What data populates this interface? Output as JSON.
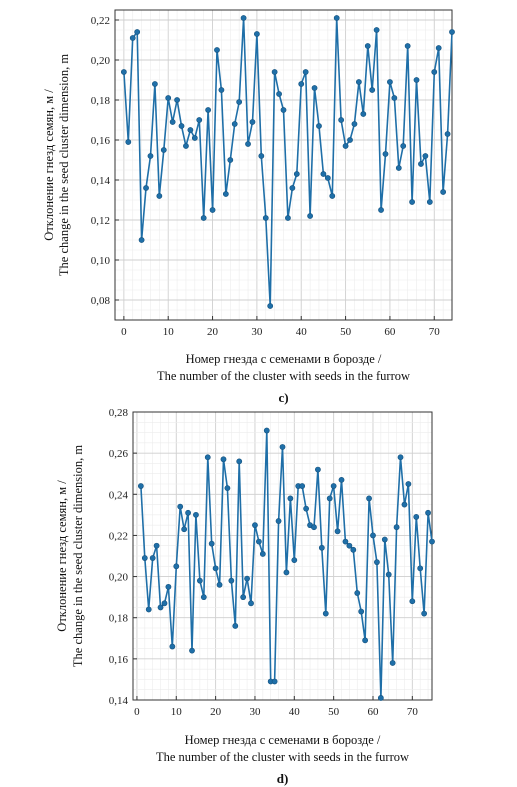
{
  "chart_data": [
    {
      "type": "line",
      "panel_label": "c)",
      "xlabel": [
        "Номер гнезда с семенами в борозде /",
        "The number of the cluster with seeds in the furrow"
      ],
      "ylabel": [
        "Отклонение гнезд семян, м /",
        "The change in the seed cluster dimension, m"
      ],
      "xlim": [
        -2,
        74
      ],
      "ylim": [
        0.07,
        0.225
      ],
      "xticks": [
        0,
        10,
        20,
        30,
        40,
        50,
        60,
        70
      ],
      "yticks": [
        0.08,
        0.1,
        0.12,
        0.14,
        0.16,
        0.18,
        0.2,
        0.22
      ],
      "ytick_labels": [
        "0,08",
        "0,10",
        "0,12",
        "0,14",
        "0,16",
        "0,18",
        "0,20",
        "0,22"
      ],
      "grid": true,
      "color": "#1f6fa8",
      "x": [
        0,
        1,
        2,
        3,
        4,
        5,
        6,
        7,
        8,
        9,
        10,
        11,
        12,
        13,
        14,
        15,
        16,
        17,
        18,
        19,
        20,
        21,
        22,
        23,
        24,
        25,
        26,
        27,
        28,
        29,
        30,
        31,
        32,
        33,
        34,
        35,
        36,
        37,
        38,
        39,
        40,
        41,
        42,
        43,
        44,
        45,
        46,
        47,
        48,
        49,
        50,
        51,
        52,
        53,
        54,
        55,
        56,
        57,
        58,
        59,
        60,
        61,
        62,
        63,
        64,
        65,
        66,
        67,
        68,
        69,
        70,
        71,
        72,
        73,
        74
      ],
      "values": [
        0.194,
        0.159,
        0.211,
        0.214,
        0.11,
        0.136,
        0.152,
        0.188,
        0.132,
        0.155,
        0.181,
        0.169,
        0.18,
        0.167,
        0.157,
        0.165,
        0.161,
        0.17,
        0.121,
        0.175,
        0.125,
        0.205,
        0.185,
        0.133,
        0.15,
        0.168,
        0.179,
        0.221,
        0.158,
        0.169,
        0.213,
        0.152,
        0.121,
        0.077,
        0.194,
        0.183,
        0.175,
        0.121,
        0.136,
        0.143,
        0.188,
        0.194,
        0.122,
        0.186,
        0.167,
        0.143,
        0.141,
        0.132,
        0.221,
        0.17,
        0.157,
        0.16,
        0.168,
        0.189,
        0.173,
        0.207,
        0.185,
        0.215,
        0.125,
        0.153,
        0.189,
        0.181,
        0.146,
        0.157,
        0.207,
        0.129,
        0.19,
        0.148,
        0.152,
        0.129,
        0.194,
        0.206,
        0.134,
        0.163,
        0.214
      ]
    },
    {
      "type": "line",
      "panel_label": "d)",
      "xlabel": [
        "Номер гнезда с семенами в борозде /",
        "The number of the cluster with seeds in the furrow"
      ],
      "ylabel": [
        "Отклонение гнезд семян, м /",
        "The change in the seed cluster dimension, m"
      ],
      "xlim": [
        -1,
        75
      ],
      "ylim": [
        0.14,
        0.28
      ],
      "xticks": [
        0,
        10,
        20,
        30,
        40,
        50,
        60,
        70
      ],
      "yticks": [
        0.14,
        0.16,
        0.18,
        0.2,
        0.22,
        0.24,
        0.26,
        0.28
      ],
      "ytick_labels": [
        "0,14",
        "0,16",
        "0,18",
        "0,20",
        "0,22",
        "0,24",
        "0,26",
        "0,28"
      ],
      "grid": true,
      "color": "#1f6fa8",
      "x": [
        1,
        2,
        3,
        4,
        5,
        6,
        7,
        8,
        9,
        10,
        11,
        12,
        13,
        14,
        15,
        16,
        17,
        18,
        19,
        20,
        21,
        22,
        23,
        24,
        25,
        26,
        27,
        28,
        29,
        30,
        31,
        32,
        33,
        34,
        35,
        36,
        37,
        38,
        39,
        40,
        41,
        42,
        43,
        44,
        45,
        46,
        47,
        48,
        49,
        50,
        51,
        52,
        53,
        54,
        55,
        56,
        57,
        58,
        59,
        60,
        61,
        62,
        63,
        64,
        65,
        66,
        67,
        68,
        69,
        70,
        71,
        72,
        73,
        74,
        75
      ],
      "values": [
        0.244,
        0.209,
        0.184,
        0.209,
        0.215,
        0.185,
        0.187,
        0.195,
        0.166,
        0.205,
        0.234,
        0.223,
        0.231,
        0.164,
        0.23,
        0.198,
        0.19,
        0.258,
        0.216,
        0.204,
        0.196,
        0.257,
        0.243,
        0.198,
        0.176,
        0.256,
        0.19,
        0.199,
        0.187,
        0.225,
        0.217,
        0.211,
        0.271,
        0.149,
        0.149,
        0.227,
        0.263,
        0.202,
        0.238,
        0.208,
        0.244,
        0.244,
        0.233,
        0.225,
        0.224,
        0.252,
        0.214,
        0.182,
        0.238,
        0.244,
        0.222,
        0.247,
        0.217,
        0.215,
        0.213,
        0.192,
        0.183,
        0.169,
        0.238,
        0.22,
        0.207,
        0.141,
        0.218,
        0.201,
        0.158,
        0.224,
        0.258,
        0.235,
        0.245,
        0.188,
        0.229,
        0.204,
        0.182,
        0.231,
        0.217
      ]
    }
  ]
}
